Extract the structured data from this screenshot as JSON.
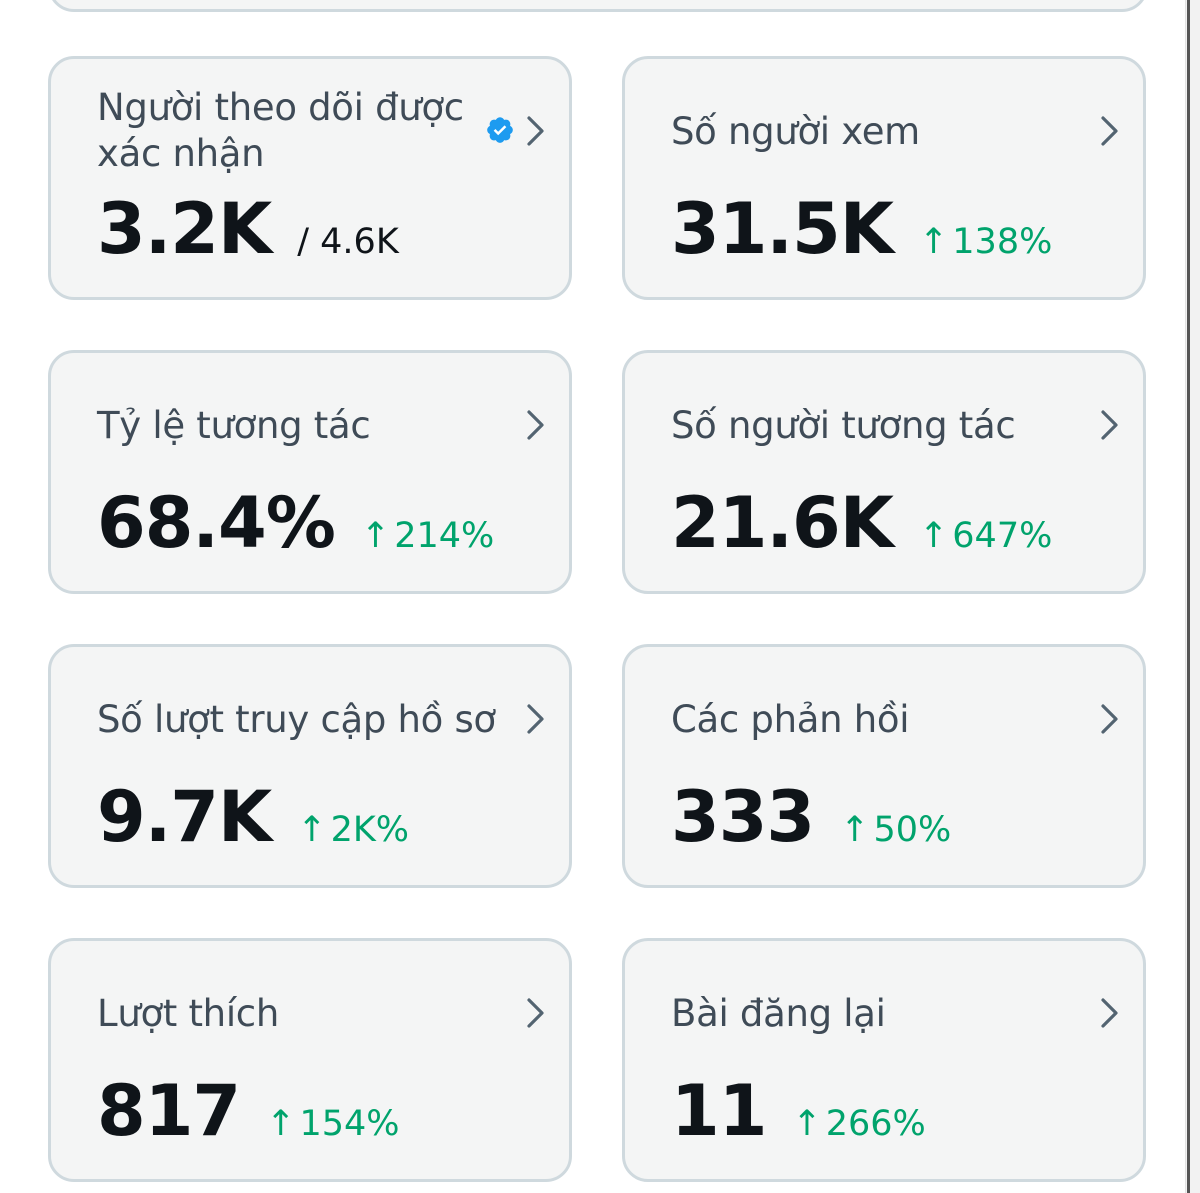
{
  "accent_color": "#1d9bf0",
  "positive_color": "#00a36c",
  "cards": [
    {
      "label": "Người theo dõi được xác nhận",
      "value": "3.2K",
      "total": "/ 4.6K",
      "verified": true
    },
    {
      "label": "Số người xem",
      "value": "31.5K",
      "change": "138%"
    },
    {
      "label": "Tỷ lệ tương tác",
      "value": "68.4%",
      "change": "214%"
    },
    {
      "label": "Số người tương tác",
      "value": "21.6K",
      "change": "647%"
    },
    {
      "label": "Số lượt truy cập hồ sơ",
      "value": "9.7K",
      "change": "2K%"
    },
    {
      "label": "Các phản hồi",
      "value": "333",
      "change": "50%"
    },
    {
      "label": "Lượt thích",
      "value": "817",
      "change": "154%"
    },
    {
      "label": "Bài đăng lại",
      "value": "11",
      "change": "266%"
    }
  ],
  "icons": {
    "chevron": "chevron-right-icon",
    "arrow": "arrow-up-icon",
    "verified": "verified-badge-icon"
  }
}
